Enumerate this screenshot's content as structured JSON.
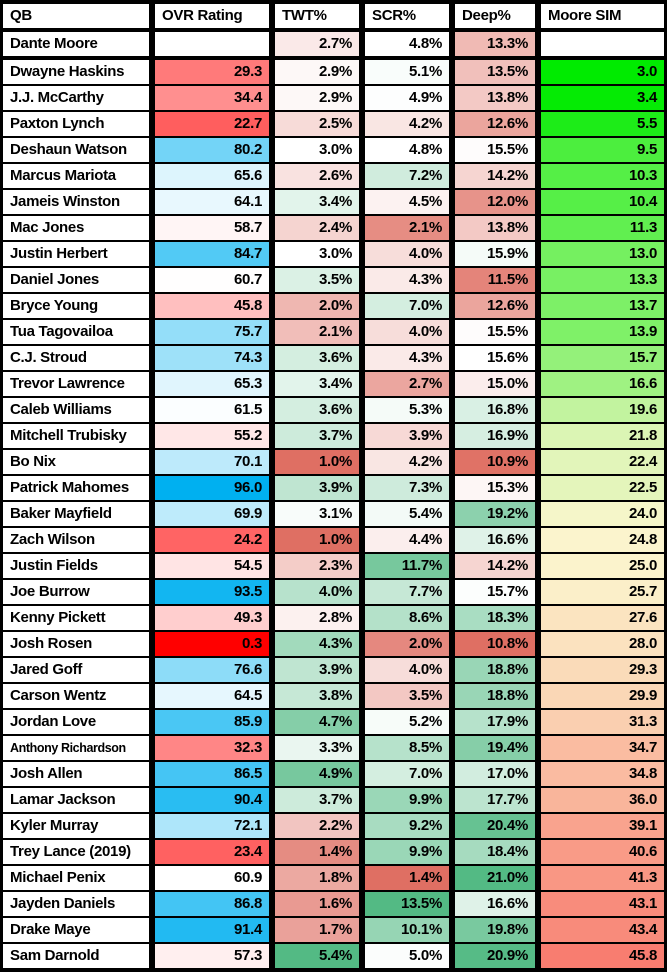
{
  "chart_data": {
    "type": "table",
    "columns": [
      {
        "key": "qb",
        "label": "QB",
        "format": "text"
      },
      {
        "key": "ovr",
        "label": "OVR Rating",
        "format": "number",
        "scale": "ovr"
      },
      {
        "key": "twt",
        "label": "TWT%",
        "format": "percent",
        "scale": "twt"
      },
      {
        "key": "scr",
        "label": "SCR%",
        "format": "percent",
        "scale": "scr"
      },
      {
        "key": "deep",
        "label": "Deep%",
        "format": "percent",
        "scale": "deep"
      },
      {
        "key": "sim",
        "label": "Moore SIM",
        "format": "number",
        "scale": "sim"
      }
    ],
    "rows": [
      {
        "qb": "Dante Moore",
        "ovr": null,
        "twt": 2.7,
        "scr": 4.8,
        "deep": 13.3,
        "sim": null
      },
      {
        "qb": "Dwayne Haskins",
        "ovr": 29.3,
        "twt": 2.9,
        "scr": 5.1,
        "deep": 13.5,
        "sim": 3.0
      },
      {
        "qb": "J.J. McCarthy",
        "ovr": 34.4,
        "twt": 2.9,
        "scr": 4.9,
        "deep": 13.8,
        "sim": 3.4
      },
      {
        "qb": "Paxton Lynch",
        "ovr": 22.7,
        "twt": 2.5,
        "scr": 4.2,
        "deep": 12.6,
        "sim": 5.5
      },
      {
        "qb": "Deshaun Watson",
        "ovr": 80.2,
        "twt": 3.0,
        "scr": 4.8,
        "deep": 15.5,
        "sim": 9.5
      },
      {
        "qb": "Marcus Mariota",
        "ovr": 65.6,
        "twt": 2.6,
        "scr": 7.2,
        "deep": 14.2,
        "sim": 10.3
      },
      {
        "qb": "Jameis Winston",
        "ovr": 64.1,
        "twt": 3.4,
        "scr": 4.5,
        "deep": 12.0,
        "sim": 10.4
      },
      {
        "qb": "Mac Jones",
        "ovr": 58.7,
        "twt": 2.4,
        "scr": 2.1,
        "deep": 13.8,
        "sim": 11.3
      },
      {
        "qb": "Justin Herbert",
        "ovr": 84.7,
        "twt": 3.0,
        "scr": 4.0,
        "deep": 15.9,
        "sim": 13.0
      },
      {
        "qb": "Daniel Jones",
        "ovr": 60.7,
        "twt": 3.5,
        "scr": 4.3,
        "deep": 11.5,
        "sim": 13.3
      },
      {
        "qb": "Bryce Young",
        "ovr": 45.8,
        "twt": 2.0,
        "scr": 7.0,
        "deep": 12.6,
        "sim": 13.7
      },
      {
        "qb": "Tua Tagovailoa",
        "ovr": 75.7,
        "twt": 2.1,
        "scr": 4.0,
        "deep": 15.5,
        "sim": 13.9
      },
      {
        "qb": "C.J. Stroud",
        "ovr": 74.3,
        "twt": 3.6,
        "scr": 4.3,
        "deep": 15.6,
        "sim": 15.7
      },
      {
        "qb": "Trevor Lawrence",
        "ovr": 65.3,
        "twt": 3.4,
        "scr": 2.7,
        "deep": 15.0,
        "sim": 16.6
      },
      {
        "qb": "Caleb Williams",
        "ovr": 61.5,
        "twt": 3.6,
        "scr": 5.3,
        "deep": 16.8,
        "sim": 19.6
      },
      {
        "qb": "Mitchell Trubisky",
        "ovr": 55.2,
        "twt": 3.7,
        "scr": 3.9,
        "deep": 16.9,
        "sim": 21.8
      },
      {
        "qb": "Bo Nix",
        "ovr": 70.1,
        "twt": 1.0,
        "scr": 4.2,
        "deep": 10.9,
        "sim": 22.4
      },
      {
        "qb": "Patrick Mahomes",
        "ovr": 96.0,
        "twt": 3.9,
        "scr": 7.3,
        "deep": 15.3,
        "sim": 22.5
      },
      {
        "qb": "Baker Mayfield",
        "ovr": 69.9,
        "twt": 3.1,
        "scr": 5.4,
        "deep": 19.2,
        "sim": 24.0
      },
      {
        "qb": "Zach Wilson",
        "ovr": 24.2,
        "twt": 1.0,
        "scr": 4.4,
        "deep": 16.6,
        "sim": 24.8
      },
      {
        "qb": "Justin Fields",
        "ovr": 54.5,
        "twt": 2.3,
        "scr": 11.7,
        "deep": 14.2,
        "sim": 25.0
      },
      {
        "qb": "Joe Burrow",
        "ovr": 93.5,
        "twt": 4.0,
        "scr": 7.7,
        "deep": 15.7,
        "sim": 25.7
      },
      {
        "qb": "Kenny Pickett",
        "ovr": 49.3,
        "twt": 2.8,
        "scr": 8.6,
        "deep": 18.3,
        "sim": 27.6
      },
      {
        "qb": "Josh Rosen",
        "ovr": 0.3,
        "twt": 4.3,
        "scr": 2.0,
        "deep": 10.8,
        "sim": 28.0
      },
      {
        "qb": "Jared Goff",
        "ovr": 76.6,
        "twt": 3.9,
        "scr": 4.0,
        "deep": 18.8,
        "sim": 29.3
      },
      {
        "qb": "Carson Wentz",
        "ovr": 64.5,
        "twt": 3.8,
        "scr": 3.5,
        "deep": 18.8,
        "sim": 29.9
      },
      {
        "qb": "Jordan Love",
        "ovr": 85.9,
        "twt": 4.7,
        "scr": 5.2,
        "deep": 17.9,
        "sim": 31.3
      },
      {
        "qb": "Anthony Richardson",
        "ovr": 32.3,
        "twt": 3.3,
        "scr": 8.5,
        "deep": 19.4,
        "sim": 34.7
      },
      {
        "qb": "Josh Allen",
        "ovr": 86.5,
        "twt": 4.9,
        "scr": 7.0,
        "deep": 17.0,
        "sim": 34.8
      },
      {
        "qb": "Lamar Jackson",
        "ovr": 90.4,
        "twt": 3.7,
        "scr": 9.9,
        "deep": 17.7,
        "sim": 36.0
      },
      {
        "qb": "Kyler Murray",
        "ovr": 72.1,
        "twt": 2.2,
        "scr": 9.2,
        "deep": 20.4,
        "sim": 39.1
      },
      {
        "qb": "Trey Lance (2019)",
        "ovr": 23.4,
        "twt": 1.4,
        "scr": 9.9,
        "deep": 18.4,
        "sim": 40.6
      },
      {
        "qb": "Michael Penix",
        "ovr": 60.9,
        "twt": 1.8,
        "scr": 1.4,
        "deep": 21.0,
        "sim": 41.3
      },
      {
        "qb": "Jayden Daniels",
        "ovr": 86.8,
        "twt": 1.6,
        "scr": 13.5,
        "deep": 16.6,
        "sim": 43.1
      },
      {
        "qb": "Drake Maye",
        "ovr": 91.4,
        "twt": 1.7,
        "scr": 10.1,
        "deep": 19.8,
        "sim": 43.4
      },
      {
        "qb": "Sam Darnold",
        "ovr": 57.3,
        "twt": 5.4,
        "scr": 5.0,
        "deep": 20.9,
        "sim": 45.8
      }
    ],
    "color_scales": {
      "ovr": {
        "min": [
          0.3,
          "#FF0000"
        ],
        "mid": [
          61.0,
          "#FFFFFF"
        ],
        "max": [
          96.0,
          "#00B0F0"
        ]
      },
      "twt": {
        "min": [
          1.0,
          "#DF6F63"
        ],
        "mid": [
          3.0,
          "#FFFFFF"
        ],
        "max": [
          5.4,
          "#53BA84"
        ]
      },
      "scr": {
        "min": [
          1.4,
          "#DF6F63"
        ],
        "mid": [
          4.8,
          "#FFFFFF"
        ],
        "max": [
          13.5,
          "#53BA84"
        ]
      },
      "deep": {
        "min": [
          10.8,
          "#DF6F63"
        ],
        "mid": [
          15.6,
          "#FFFFFF"
        ],
        "max": [
          21.0,
          "#53BA84"
        ]
      },
      "sim": {
        "min": [
          3.0,
          "#00EB00"
        ],
        "mid": [
          24.5,
          "#FBF6CE"
        ],
        "max": [
          45.8,
          "#F87D70"
        ]
      }
    },
    "layout_colors": {
      "grid": "#000000",
      "header_bg": "#FFFFFF",
      "cell_default_bg": "#FFFFFF",
      "text": "#000000"
    }
  }
}
